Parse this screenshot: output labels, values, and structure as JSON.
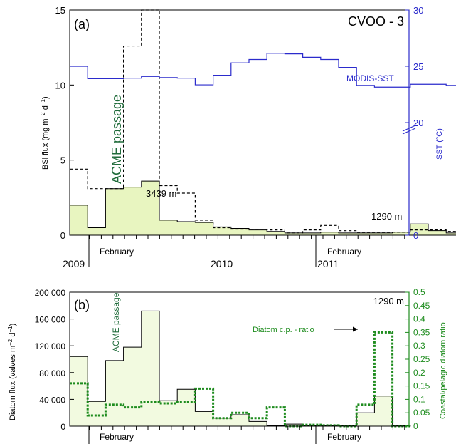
{
  "chart_data": [
    {
      "type": "line",
      "panel_label": "(a)",
      "station_label": "CVOO - 3",
      "ylabel_parts": [
        "BSi flux (mg m",
        "−2",
        " d",
        "−1",
        ")"
      ],
      "ylim": [
        0,
        15
      ],
      "yticks": [
        "0",
        "5",
        "10",
        "15"
      ],
      "y2label": "SST (°C)",
      "y2ticks": [
        "0",
        "20",
        "25",
        "30"
      ],
      "x_tick_labels": [
        "2009",
        "February",
        "2010",
        "2011",
        "February"
      ],
      "annotations": {
        "acme": "ACME passage",
        "depth_deep": "3439 m",
        "depth_shallow": "1290 m",
        "sst": "MODIS-SST"
      },
      "colors": {
        "sst": "#2b2bcc",
        "fill": "#e8f5c0",
        "acme": "#1f6b3a"
      },
      "series": [
        {
          "name": "3439 m",
          "style": "dashed",
          "values": [
            4.4,
            3.1,
            3.1,
            12.6,
            15.0,
            3.3,
            2.8,
            1.0,
            0.5,
            0.4,
            0.4,
            0.35,
            0.15,
            0.35,
            0.65,
            0.3,
            0.2,
            0.2,
            0.2,
            0.35,
            0.35,
            0.25
          ]
        },
        {
          "name": "1290 m",
          "style": "filled",
          "values": [
            2.0,
            0.5,
            3.1,
            3.2,
            3.6,
            1.0,
            0.9,
            0.85,
            0.55,
            0.45,
            0.35,
            0.25,
            0.15,
            0.15,
            0.2,
            0.15,
            0.15,
            0.15,
            0.2,
            0.75,
            0.3,
            0.15
          ]
        },
        {
          "name": "MODIS-SST",
          "style": "line",
          "values": [
            25.0,
            23.9,
            23.9,
            23.95,
            24.1,
            24.0,
            23.95,
            23.35,
            24.2,
            25.3,
            25.6,
            26.15,
            26.1,
            25.8,
            25.6,
            24.9,
            23.3,
            23.15,
            23.15,
            23.4,
            23.4,
            23.3
          ]
        }
      ]
    },
    {
      "type": "bar",
      "panel_label": "(b)",
      "depth_label": "1290 m",
      "ylabel_parts": [
        "Diatom flux (valves m",
        "−2",
        " d",
        "−1",
        ")"
      ],
      "ylim": [
        0,
        200000
      ],
      "yticks": [
        "0",
        "40 000",
        "80 000",
        "120 000",
        "160 000",
        "200 000"
      ],
      "y2label": "Coastal/pelagic diatom ratio",
      "y2lim": [
        0,
        0.5
      ],
      "y2ticks": [
        "0",
        "0.05",
        "0.1",
        "0.15",
        "0.2",
        "0.25",
        "0.3",
        "0.35",
        "0.4",
        "0.45",
        "0.5"
      ],
      "x_tick_labels": [
        "2009",
        "February",
        "2010",
        "2011",
        "February"
      ],
      "annotations": {
        "acme": "ACME passage",
        "ratio": "Diatom c.p. - ratio"
      },
      "colors": {
        "ratio": "#1e8c1e",
        "fill": "#f2fae0",
        "acme": "#1f6b3a"
      },
      "series": [
        {
          "name": "Diatom flux",
          "style": "filled",
          "values": [
            104000,
            37000,
            98000,
            118000,
            172000,
            38000,
            55000,
            22000,
            12000,
            17000,
            7000,
            1000,
            3000,
            1000,
            1000,
            1000,
            20000,
            45000,
            1000
          ]
        },
        {
          "name": "Diatom c.p. - ratio",
          "style": "dotted",
          "values": [
            0.16,
            0.04,
            0.08,
            0.07,
            0.09,
            0.085,
            0.09,
            0.14,
            0.03,
            0.05,
            0.03,
            0.07,
            0.0,
            0.005,
            0.003,
            0.0,
            0.08,
            0.35,
            0.0
          ]
        }
      ]
    }
  ]
}
